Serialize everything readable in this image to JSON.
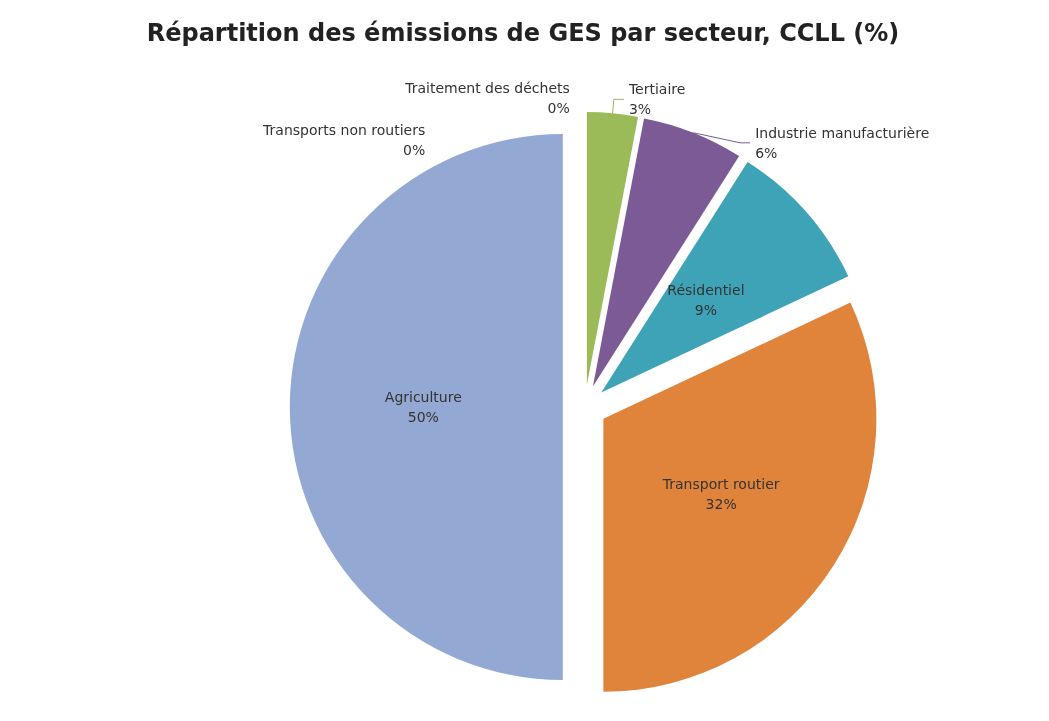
{
  "chart_data": {
    "type": "pie",
    "title": "Répartition des émissions de GES par secteur, CCLL (%)",
    "categories": [
      "Traitement des déchets",
      "Tertiaire",
      "Industrie manufacturière",
      "Résidentiel",
      "Transport routier",
      "Agriculture",
      "Transports non routiers"
    ],
    "values": [
      0,
      3,
      6,
      9,
      32,
      50,
      0
    ],
    "value_labels": [
      "0%",
      "3%",
      "6%",
      "9%",
      "32%",
      "50%",
      "0%"
    ],
    "colors": [
      "#c0504d",
      "#9bbb59",
      "#7b5a96",
      "#3fa3b8",
      "#e0843c",
      "#93a9d3",
      "#4f81bd"
    ],
    "legend": false
  }
}
